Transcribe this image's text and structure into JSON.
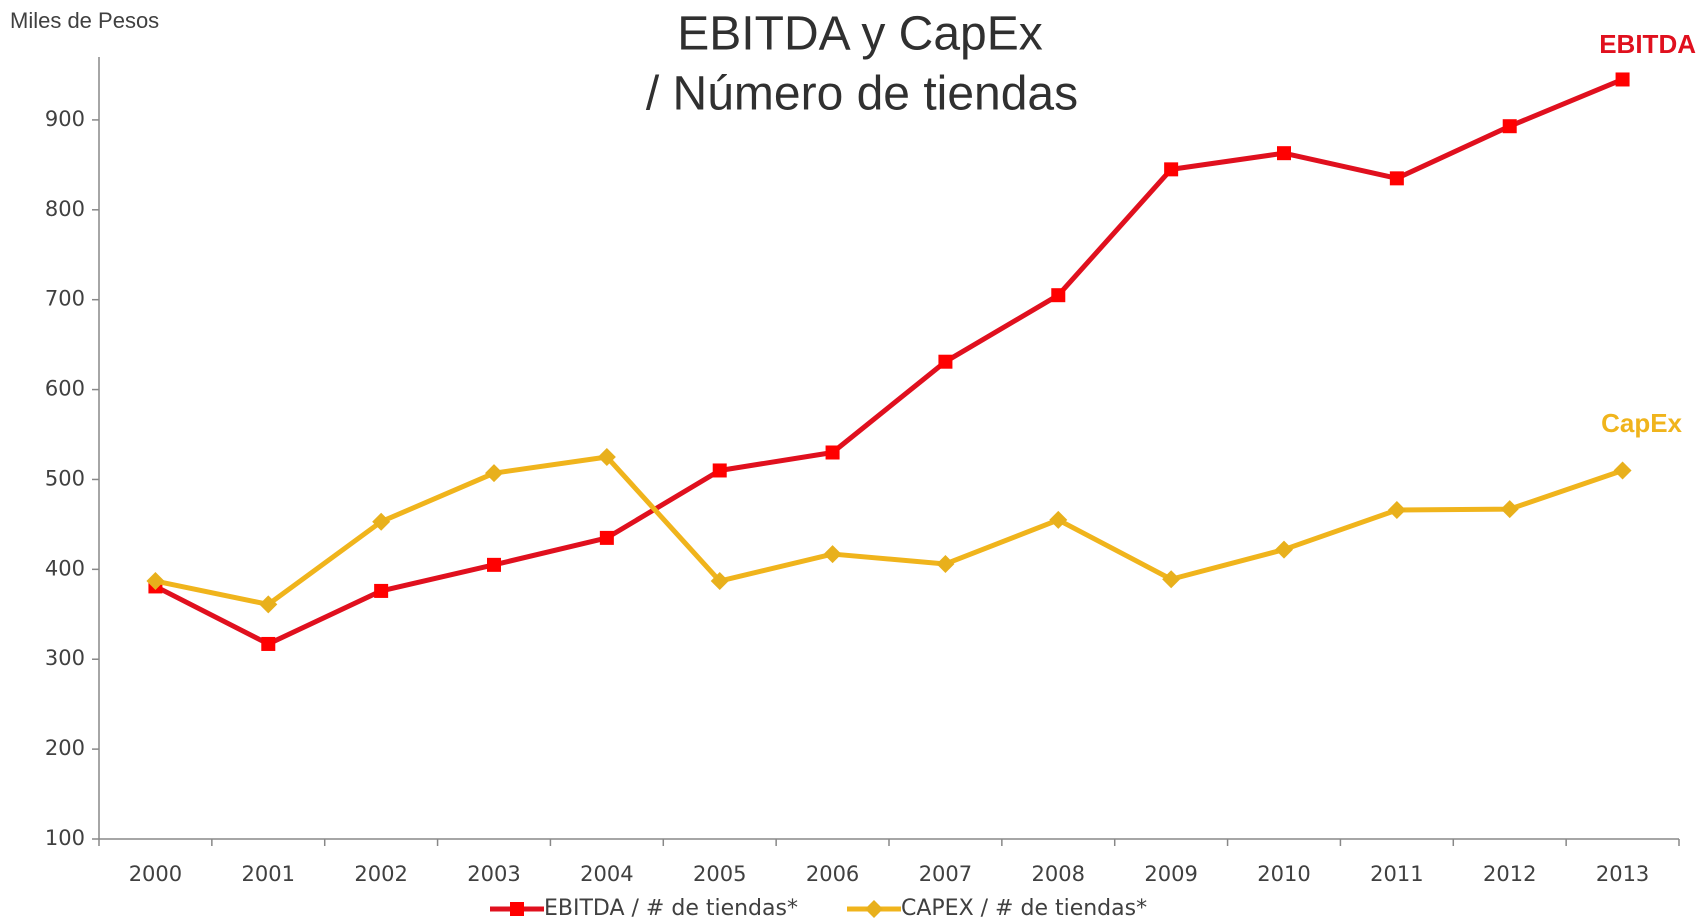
{
  "chart_data": {
    "type": "line",
    "title": "EBITDA y CapEx",
    "subtitle": "/ Número de tiendas",
    "y_axis_label": "Miles de Pesos",
    "annotations": [
      {
        "text": "EBITDA",
        "color": "#e0101e"
      },
      {
        "text": "CapEx",
        "color": "#f0b41c"
      }
    ],
    "categories": [
      "2000",
      "2001",
      "2002",
      "2003",
      "2004",
      "2005",
      "2006",
      "2007",
      "2008",
      "2009",
      "2010",
      "2011",
      "2012",
      "2013"
    ],
    "series": [
      {
        "name": "EBITDA / # de tiendas*",
        "color": "#e0101e",
        "marker_color": "#ff0000",
        "marker": "square",
        "values": [
          381,
          317,
          376,
          405,
          435,
          510,
          530,
          631,
          705,
          845,
          863,
          835,
          893,
          945
        ]
      },
      {
        "name": "CAPEX / # de tiendas*",
        "color": "#f0b41c",
        "marker_color": "#e8b01c",
        "marker": "diamond",
        "values": [
          387,
          361,
          453,
          507,
          525,
          387,
          417,
          406,
          455,
          389,
          422,
          466,
          467,
          510
        ]
      }
    ],
    "ylim": [
      100,
      970
    ],
    "yticks": [
      100,
      200,
      300,
      400,
      500,
      600,
      700,
      800,
      900
    ],
    "grid": false,
    "legend": "bottom"
  }
}
